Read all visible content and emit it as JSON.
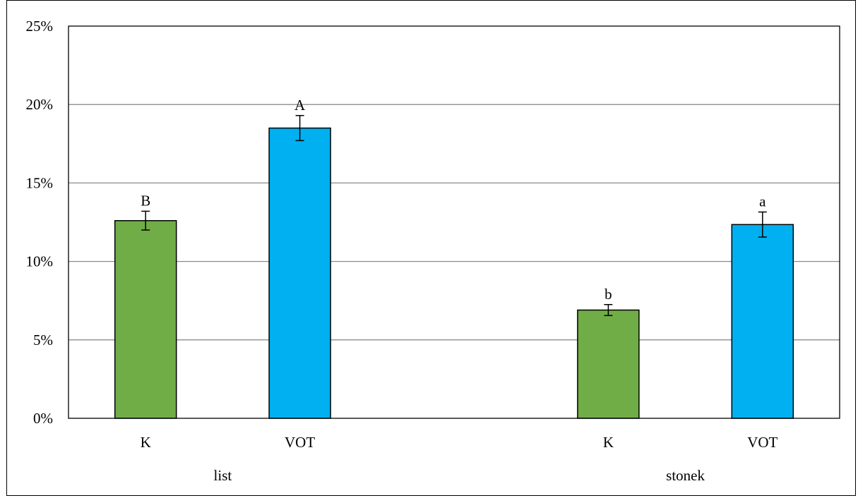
{
  "chart_data": {
    "type": "bar",
    "ylim": [
      0,
      25
    ],
    "yticks": [
      0,
      5,
      10,
      15,
      20,
      25
    ],
    "ytick_labels": [
      "0%",
      "5%",
      "10%",
      "15%",
      "20%",
      "25%"
    ],
    "grid": true,
    "groups": [
      {
        "label": "list",
        "bars": [
          {
            "category": "K",
            "value": 12.6,
            "error": 0.6,
            "letter": "B",
            "color": "#70AD47"
          },
          {
            "category": "VOT",
            "value": 18.5,
            "error": 0.8,
            "letter": "A",
            "color": "#00B0F0"
          }
        ]
      },
      {
        "label": "stonek",
        "bars": [
          {
            "category": "K",
            "value": 6.9,
            "error": 0.35,
            "letter": "b",
            "color": "#70AD47"
          },
          {
            "category": "VOT",
            "value": 12.35,
            "error": 0.8,
            "letter": "a",
            "color": "#00B0F0"
          }
        ]
      }
    ]
  }
}
